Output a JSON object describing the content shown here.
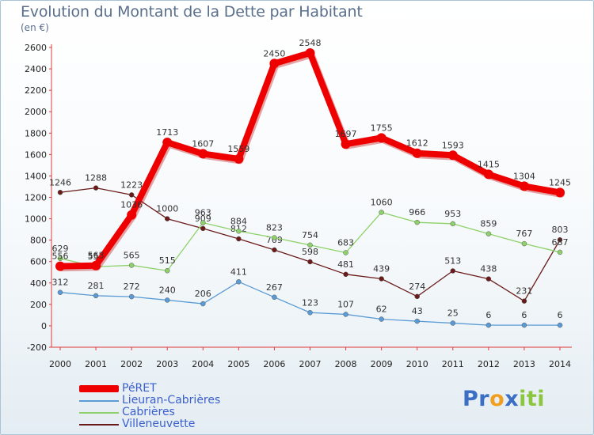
{
  "chart_data": {
    "type": "line",
    "title": "Evolution du Montant de la Dette par Habitant",
    "subtitle": "(en €)",
    "x": [
      "2000",
      "2001",
      "2002",
      "2003",
      "2004",
      "2005",
      "2006",
      "2007",
      "2008",
      "2009",
      "2010",
      "2011",
      "2012",
      "2013",
      "2014"
    ],
    "ylim": [
      -200,
      2600
    ],
    "yticks": [
      -200,
      0,
      200,
      400,
      600,
      800,
      1000,
      1200,
      1400,
      1600,
      1800,
      2000,
      2200,
      2400,
      2600
    ],
    "grid": false,
    "legend_position": "bottom-left",
    "series": [
      {
        "name": "Villeneuvette",
        "color": "#6b1a1a",
        "values": [
          1246,
          1288,
          1223,
          1000,
          909,
          812,
          709,
          598,
          481,
          439,
          274,
          513,
          438,
          231,
          803
        ],
        "labels": [
          "1246",
          "1288",
          "1223",
          "1000",
          "909",
          "812",
          "709",
          "598",
          "481",
          "439",
          "274",
          "513",
          "438",
          "231",
          "803"
        ]
      },
      {
        "name": "Cabrières",
        "color": "#8ed16a",
        "values": [
          629,
          552,
          565,
          515,
          963,
          884,
          823,
          754,
          683,
          1060,
          966,
          953,
          859,
          767,
          687
        ],
        "labels": [
          "629",
          "552",
          "565",
          "515",
          "963",
          "884",
          "823",
          "754",
          "683",
          "1060",
          "966",
          "953",
          "859",
          "767",
          "687"
        ]
      },
      {
        "name": "Lieuran-Cabrières",
        "color": "#5a9bd5",
        "values": [
          312,
          281,
          272,
          240,
          206,
          411,
          267,
          123,
          107,
          62,
          43,
          25,
          6,
          6,
          6
        ],
        "labels": [
          "312",
          "281",
          "272",
          "240",
          "206",
          "411",
          "267",
          "123",
          "107",
          "62",
          "43",
          "25",
          "6",
          "6",
          "6"
        ]
      },
      {
        "name": "PéRET",
        "color": "#ee0000",
        "values": [
          556,
          563,
          1036,
          1713,
          1607,
          1559,
          2450,
          2548,
          1697,
          1755,
          1612,
          1593,
          1415,
          1304,
          1245
        ],
        "labels": [
          "556",
          "563",
          "1036",
          "1713",
          "1607",
          "1559",
          "2450",
          "2548",
          "1697",
          "1755",
          "1612",
          "1593",
          "1415",
          "1304",
          "1245"
        ]
      }
    ]
  },
  "legend": {
    "items": [
      {
        "label": "PéRET",
        "color": "#ee0000"
      },
      {
        "label": "Lieuran-Cabrières",
        "color": "#5a9bd5"
      },
      {
        "label": "Cabrières",
        "color": "#8ed16a"
      },
      {
        "label": "Villeneuvette",
        "color": "#6b1a1a"
      }
    ]
  },
  "logo": {
    "letters": [
      "P",
      "r",
      "o",
      "x",
      "i",
      "t",
      "i"
    ],
    "colors": [
      "#3a6fc4",
      "#3a6fc4",
      "#f0a020",
      "#3a6fc4",
      "#8cc63f",
      "#8cc63f",
      "#8cc63f"
    ]
  }
}
